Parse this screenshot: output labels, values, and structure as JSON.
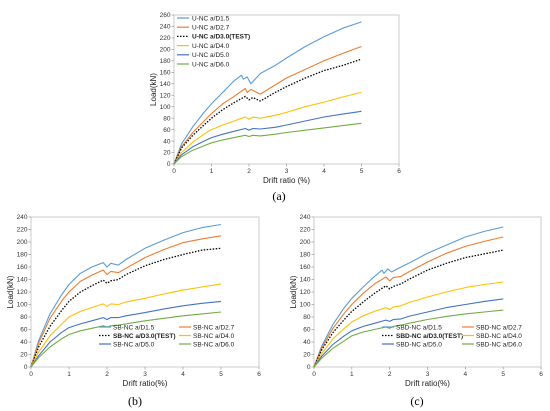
{
  "chart_data": [
    {
      "type": "line",
      "caption": "(a)",
      "xlabel": "Drift ratio (%)",
      "ylabel": "Load(kN)",
      "xlim": [
        0,
        6
      ],
      "ylim": [
        0,
        260
      ],
      "xticks": [
        0,
        1,
        2,
        3,
        4,
        5,
        6
      ],
      "yticks": [
        0,
        20,
        40,
        60,
        80,
        100,
        120,
        140,
        160,
        180,
        200,
        220,
        240,
        260
      ],
      "grid": false,
      "legend_position": "top-left",
      "series": [
        {
          "name": "U-NC a/D1.5",
          "color": "#5b9bd5",
          "dash": "solid",
          "x": [
            0,
            0.2,
            0.5,
            0.8,
            1.0,
            1.3,
            1.6,
            1.8,
            1.85,
            1.95,
            2.05,
            2.3,
            2.7,
            3.0,
            3.5,
            4.0,
            4.5,
            5.0
          ],
          "y": [
            0,
            35,
            65,
            90,
            105,
            125,
            145,
            155,
            148,
            152,
            140,
            158,
            172,
            185,
            205,
            222,
            237,
            248
          ]
        },
        {
          "name": "U-NC a/D2.7",
          "color": "#ed7d31",
          "dash": "solid",
          "x": [
            0,
            0.2,
            0.5,
            0.8,
            1.0,
            1.3,
            1.6,
            1.9,
            1.95,
            2.05,
            2.3,
            2.7,
            3.0,
            3.5,
            4.0,
            4.5,
            5.0
          ],
          "y": [
            0,
            30,
            55,
            75,
            88,
            105,
            118,
            132,
            125,
            130,
            122,
            138,
            150,
            165,
            180,
            193,
            205
          ]
        },
        {
          "name": "U-NC a/D3.0(TEST)",
          "color": "#000000",
          "dash": "dotted",
          "bold": true,
          "x": [
            0,
            0.2,
            0.5,
            0.8,
            1.0,
            1.3,
            1.6,
            1.9,
            2.0,
            2.1,
            2.3,
            2.7,
            3.0,
            3.5,
            4.0,
            4.5,
            5.0
          ],
          "y": [
            0,
            28,
            50,
            68,
            80,
            95,
            107,
            118,
            112,
            116,
            110,
            125,
            135,
            150,
            163,
            172,
            183
          ]
        },
        {
          "name": "U-NC a/D4.0",
          "color": "#ffc000",
          "dash": "solid",
          "x": [
            0,
            0.2,
            0.5,
            0.8,
            1.0,
            1.3,
            1.6,
            1.9,
            2.0,
            2.1,
            2.3,
            2.7,
            3.0,
            3.5,
            4.0,
            4.5,
            5.0
          ],
          "y": [
            0,
            20,
            38,
            52,
            60,
            68,
            75,
            82,
            78,
            82,
            80,
            85,
            90,
            100,
            108,
            117,
            125
          ]
        },
        {
          "name": "U-NC a/D5.0",
          "color": "#4472c4",
          "dash": "solid",
          "x": [
            0,
            0.2,
            0.5,
            0.8,
            1.0,
            1.3,
            1.6,
            1.9,
            2.0,
            2.1,
            2.3,
            2.7,
            3.0,
            3.5,
            4.0,
            4.5,
            5.0
          ],
          "y": [
            0,
            16,
            30,
            40,
            46,
            52,
            57,
            62,
            59,
            62,
            61,
            64,
            68,
            75,
            82,
            87,
            92
          ]
        },
        {
          "name": "U-NC a/D6.0",
          "color": "#70ad47",
          "dash": "solid",
          "x": [
            0,
            0.2,
            0.5,
            0.8,
            1.0,
            1.3,
            1.6,
            1.9,
            2.0,
            2.1,
            2.3,
            2.7,
            3.0,
            3.5,
            4.0,
            4.5,
            5.0
          ],
          "y": [
            0,
            13,
            24,
            32,
            37,
            42,
            46,
            50,
            48,
            50,
            49,
            52,
            55,
            59,
            63,
            67,
            71
          ]
        }
      ]
    },
    {
      "type": "line",
      "caption": "(b)",
      "xlabel": "Drift ratio(%)",
      "ylabel": "Load(kN)",
      "xlim": [
        0,
        6
      ],
      "ylim": [
        0,
        240
      ],
      "xticks": [
        0,
        1,
        2,
        3,
        4,
        5,
        6
      ],
      "yticks": [
        0,
        20,
        40,
        60,
        80,
        100,
        120,
        140,
        160,
        180,
        200,
        220,
        240
      ],
      "grid": false,
      "legend_position": "bottom-right",
      "series": [
        {
          "name": "SB-NC a/D1.5",
          "color": "#5b9bd5",
          "dash": "solid",
          "x": [
            0,
            0.2,
            0.5,
            0.8,
            1.0,
            1.3,
            1.6,
            1.9,
            2.0,
            2.1,
            2.3,
            2.5,
            3.0,
            3.5,
            4.0,
            4.5,
            5.0
          ],
          "y": [
            0,
            42,
            85,
            115,
            132,
            150,
            160,
            167,
            160,
            166,
            163,
            172,
            190,
            203,
            215,
            223,
            228
          ]
        },
        {
          "name": "SB-NC a/D2.7",
          "color": "#ed7d31",
          "dash": "solid",
          "x": [
            0,
            0.2,
            0.5,
            0.8,
            1.0,
            1.3,
            1.6,
            1.9,
            2.0,
            2.1,
            2.3,
            2.5,
            3.0,
            3.5,
            4.0,
            4.5,
            5.0
          ],
          "y": [
            0,
            38,
            78,
            105,
            120,
            137,
            147,
            155,
            148,
            153,
            151,
            158,
            175,
            188,
            199,
            205,
            210
          ]
        },
        {
          "name": "SB-NC a/D3.0(TEST)",
          "color": "#000000",
          "dash": "dotted",
          "bold": true,
          "x": [
            0,
            0.2,
            0.5,
            0.8,
            1.0,
            1.3,
            1.6,
            1.9,
            2.0,
            2.1,
            2.3,
            2.5,
            3.0,
            3.5,
            4.0,
            4.5,
            5.0
          ],
          "y": [
            0,
            32,
            65,
            90,
            105,
            120,
            130,
            139,
            134,
            138,
            140,
            148,
            162,
            172,
            180,
            187,
            190
          ]
        },
        {
          "name": "SB-NC a/D4.0",
          "color": "#ffc000",
          "dash": "solid",
          "x": [
            0,
            0.2,
            0.5,
            0.8,
            1.0,
            1.3,
            1.6,
            1.9,
            2.0,
            2.1,
            2.3,
            2.5,
            3.0,
            3.5,
            4.0,
            4.5,
            5.0
          ],
          "y": [
            0,
            24,
            50,
            68,
            80,
            89,
            95,
            101,
            97,
            101,
            100,
            104,
            110,
            117,
            123,
            128,
            133
          ]
        },
        {
          "name": "SB-NC a/D5.0",
          "color": "#4472c4",
          "dash": "solid",
          "x": [
            0,
            0.2,
            0.5,
            0.8,
            1.0,
            1.3,
            1.6,
            1.9,
            2.0,
            2.1,
            2.3,
            2.5,
            3.0,
            3.5,
            4.0,
            4.5,
            5.0
          ],
          "y": [
            0,
            18,
            40,
            55,
            63,
            69,
            74,
            79,
            76,
            79,
            79,
            82,
            87,
            93,
            98,
            102,
            105
          ]
        },
        {
          "name": "SB-NC a/D6.0",
          "color": "#70ad47",
          "dash": "solid",
          "x": [
            0,
            0.2,
            0.5,
            0.8,
            1.0,
            1.3,
            1.6,
            1.9,
            2.0,
            2.1,
            2.3,
            2.5,
            3.0,
            3.5,
            4.0,
            4.5,
            5.0
          ],
          "y": [
            0,
            15,
            32,
            45,
            52,
            58,
            62,
            66,
            64,
            66,
            67,
            69,
            74,
            78,
            82,
            85,
            88
          ]
        }
      ]
    },
    {
      "type": "line",
      "caption": "(c)",
      "xlabel": "Drift ratio(%)",
      "ylabel": "Load(kN)",
      "xlim": [
        0,
        6
      ],
      "ylim": [
        0,
        240
      ],
      "xticks": [
        0,
        1,
        2,
        3,
        4,
        5,
        6
      ],
      "yticks": [
        0,
        20,
        40,
        60,
        80,
        100,
        120,
        140,
        160,
        180,
        200,
        220,
        240
      ],
      "grid": false,
      "legend_position": "bottom-right",
      "series": [
        {
          "name": "SBD-NC a/D1.5",
          "color": "#5b9bd5",
          "dash": "solid",
          "x": [
            0,
            0.2,
            0.5,
            0.8,
            1.0,
            1.3,
            1.6,
            1.8,
            1.85,
            1.95,
            2.05,
            2.3,
            2.5,
            3.0,
            3.5,
            4.0,
            4.5,
            5.0
          ],
          "y": [
            0,
            33,
            68,
            95,
            110,
            128,
            145,
            155,
            150,
            157,
            152,
            160,
            166,
            182,
            195,
            208,
            217,
            224
          ]
        },
        {
          "name": "SBD-NC a/D2.7",
          "color": "#ed7d31",
          "dash": "solid",
          "x": [
            0,
            0.2,
            0.5,
            0.8,
            1.0,
            1.3,
            1.6,
            1.9,
            2.0,
            2.1,
            2.3,
            2.5,
            3.0,
            3.5,
            4.0,
            4.5,
            5.0
          ],
          "y": [
            0,
            30,
            62,
            86,
            100,
            118,
            133,
            144,
            138,
            143,
            145,
            152,
            168,
            182,
            193,
            201,
            208
          ]
        },
        {
          "name": "SBD-NC a/D3.0(TEST)",
          "color": "#000000",
          "dash": "dotted",
          "bold": true,
          "x": [
            0,
            0.2,
            0.5,
            0.8,
            1.0,
            1.3,
            1.6,
            1.9,
            2.0,
            2.1,
            2.3,
            2.5,
            3.0,
            3.5,
            4.0,
            4.5,
            5.0
          ],
          "y": [
            0,
            27,
            55,
            76,
            89,
            104,
            118,
            130,
            125,
            129,
            133,
            140,
            155,
            166,
            175,
            181,
            187
          ]
        },
        {
          "name": "SBD-NC a/D4.0",
          "color": "#ffc000",
          "dash": "solid",
          "x": [
            0,
            0.2,
            0.5,
            0.8,
            1.0,
            1.3,
            1.6,
            1.9,
            2.0,
            2.1,
            2.3,
            2.5,
            3.0,
            3.5,
            4.0,
            4.5,
            5.0
          ],
          "y": [
            0,
            21,
            45,
            62,
            72,
            82,
            89,
            95,
            92,
            96,
            98,
            103,
            112,
            120,
            127,
            132,
            136
          ]
        },
        {
          "name": "SBD-NC a/D5.0",
          "color": "#4472c4",
          "dash": "solid",
          "x": [
            0,
            0.2,
            0.5,
            0.8,
            1.0,
            1.3,
            1.6,
            1.9,
            2.0,
            2.1,
            2.3,
            2.5,
            3.0,
            3.5,
            4.0,
            4.5,
            5.0
          ],
          "y": [
            0,
            17,
            36,
            50,
            58,
            65,
            70,
            75,
            73,
            76,
            77,
            81,
            88,
            95,
            100,
            105,
            109
          ]
        },
        {
          "name": "SBD-NC a/D6.0",
          "color": "#70ad47",
          "dash": "solid",
          "x": [
            0,
            0.2,
            0.5,
            0.8,
            1.0,
            1.3,
            1.6,
            1.9,
            2.0,
            2.1,
            2.3,
            2.5,
            3.0,
            3.5,
            4.0,
            4.5,
            5.0
          ],
          "y": [
            0,
            14,
            30,
            42,
            50,
            56,
            60,
            64,
            62,
            65,
            67,
            70,
            76,
            81,
            85,
            88,
            91
          ]
        }
      ]
    }
  ]
}
